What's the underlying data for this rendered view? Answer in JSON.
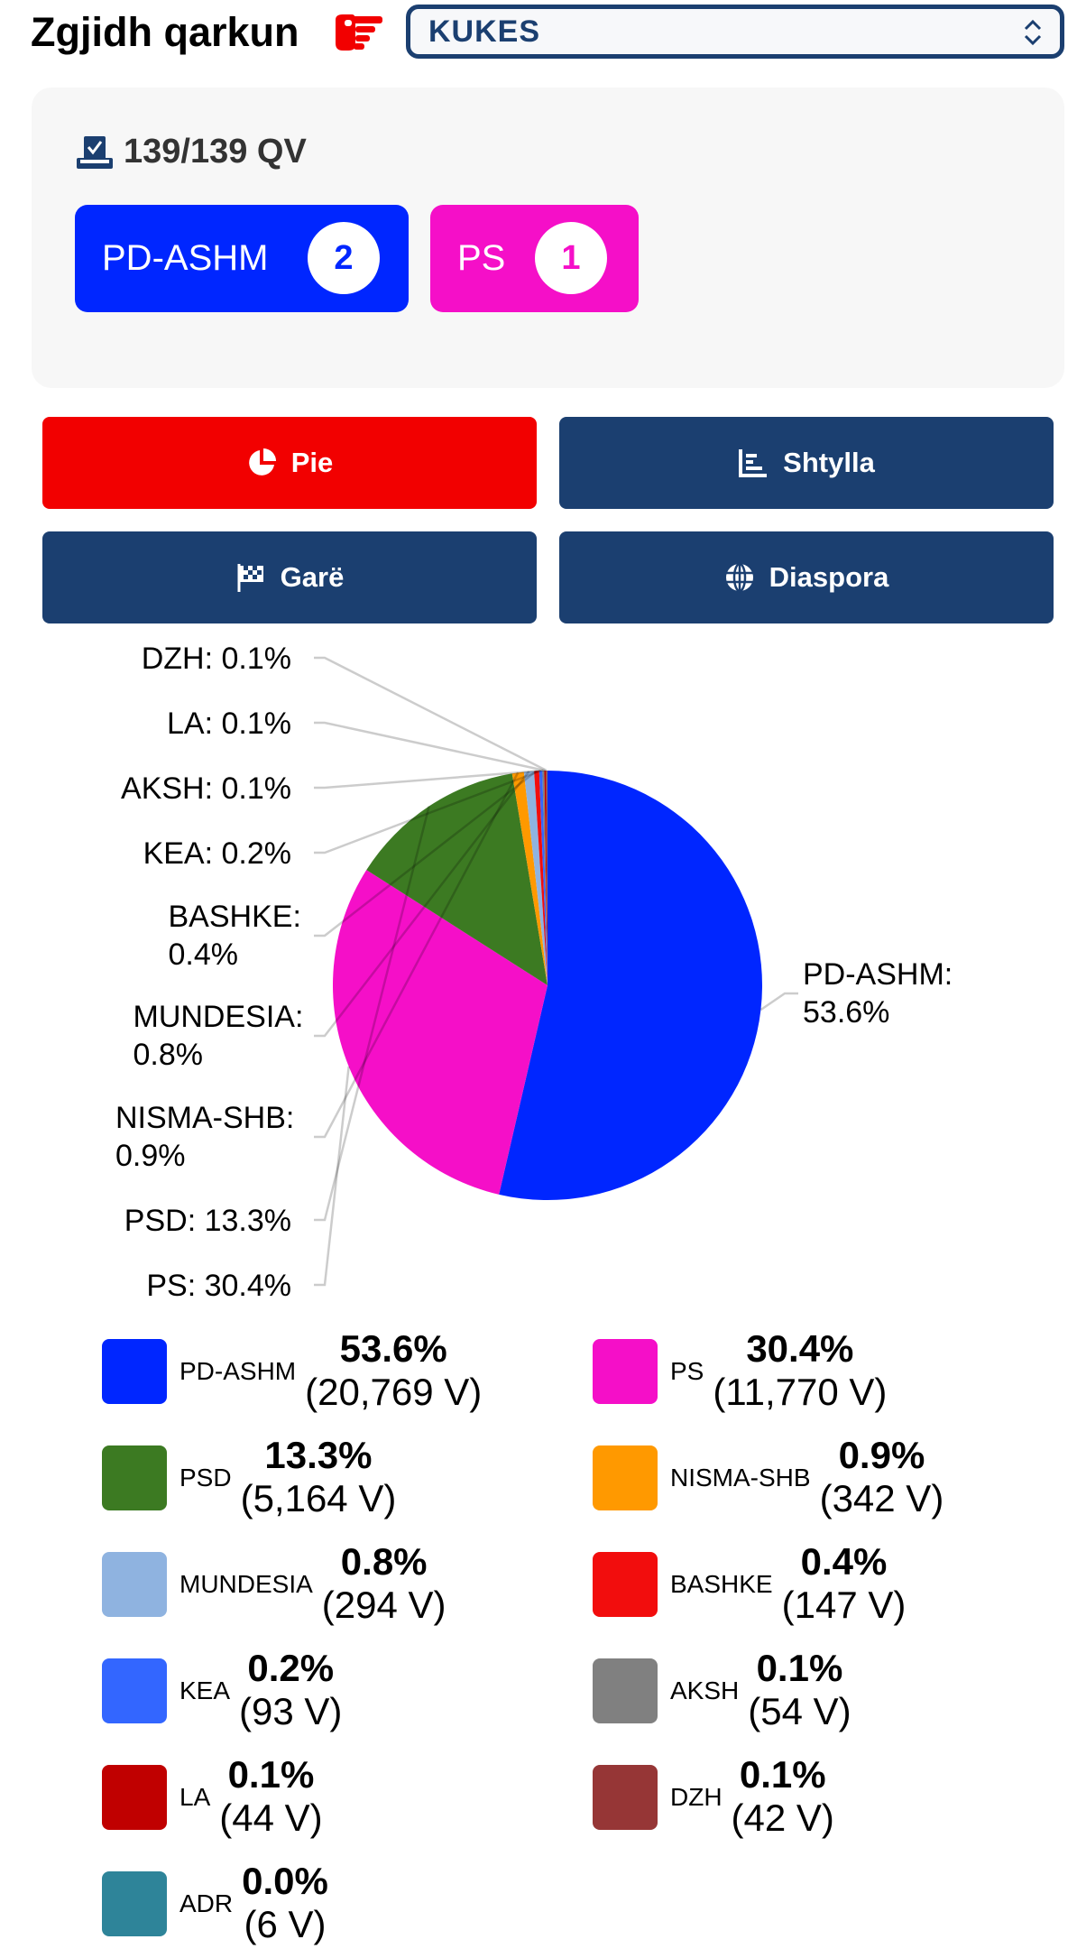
{
  "header": {
    "title": "Zgjidh qarkun",
    "hand_icon": "pointing-hand-icon",
    "selected_region": "KUKES"
  },
  "summary": {
    "stations": "139/139 QV",
    "seats": [
      {
        "party": "PD-ASHM",
        "seats": "2",
        "color": "#0026ff"
      },
      {
        "party": "PS",
        "seats": "1",
        "color": "#f50fc8"
      }
    ]
  },
  "buttons": [
    {
      "label": "Pie",
      "icon": "pie-chart-icon",
      "active": true
    },
    {
      "label": "Shtylla",
      "icon": "bar-chart-icon",
      "active": false
    },
    {
      "label": "Garë",
      "icon": "checkered-flag-icon",
      "active": false
    },
    {
      "label": "Diaspora",
      "icon": "globe-icon",
      "active": false
    }
  ],
  "chart_data": {
    "type": "pie",
    "slices": [
      {
        "name": "PD-ASHM",
        "percent": 53.6,
        "votes": 20769,
        "pct_label": "53.6%",
        "votes_label": "(20,769 V)",
        "chart_label": "PD-ASHM: 53.6%",
        "color": "#0026ff"
      },
      {
        "name": "PS",
        "percent": 30.4,
        "votes": 11770,
        "pct_label": "30.4%",
        "votes_label": "(11,770 V)",
        "chart_label": "PS: 30.4%",
        "color": "#f50fc8"
      },
      {
        "name": "PSD",
        "percent": 13.3,
        "votes": 5164,
        "pct_label": "13.3%",
        "votes_label": "(5,164 V)",
        "chart_label": "PSD: 13.3%",
        "color": "#3c7a22"
      },
      {
        "name": "NISMA-SHB",
        "percent": 0.9,
        "votes": 342,
        "pct_label": "0.9%",
        "votes_label": "(342 V)",
        "chart_label": "NISMA-SHB: 0.9%",
        "color": "#ff9900"
      },
      {
        "name": "MUNDESIA",
        "percent": 0.8,
        "votes": 294,
        "pct_label": "0.8%",
        "votes_label": "(294 V)",
        "chart_label": "MUNDESIA: 0.8%",
        "color": "#8fb3e0"
      },
      {
        "name": "BASHKE",
        "percent": 0.4,
        "votes": 147,
        "pct_label": "0.4%",
        "votes_label": "(147 V)",
        "chart_label": "BASHKE: 0.4%",
        "color": "#f20d0d"
      },
      {
        "name": "KEA",
        "percent": 0.2,
        "votes": 93,
        "pct_label": "0.2%",
        "votes_label": "(93 V)",
        "chart_label": "KEA: 0.2%",
        "color": "#3366ff"
      },
      {
        "name": "AKSH",
        "percent": 0.1,
        "votes": 54,
        "pct_label": "0.1%",
        "votes_label": "(54 V)",
        "chart_label": "AKSH: 0.1%",
        "color": "#808080"
      },
      {
        "name": "LA",
        "percent": 0.1,
        "votes": 44,
        "pct_label": "0.1%",
        "votes_label": "(44 V)",
        "chart_label": "LA: 0.1%",
        "color": "#c00000"
      },
      {
        "name": "DZH",
        "percent": 0.1,
        "votes": 42,
        "pct_label": "0.1%",
        "votes_label": "(42 V)",
        "chart_label": "DZH: 0.1%",
        "color": "#963636"
      },
      {
        "name": "ADR",
        "percent": 0.0,
        "votes": 6,
        "pct_label": "0.0%",
        "votes_label": "(6 V)",
        "chart_label": "",
        "color": "#2e8499"
      }
    ]
  }
}
